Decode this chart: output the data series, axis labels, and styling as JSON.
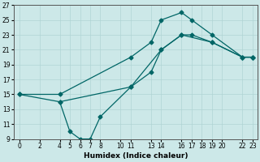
{
  "xlabel": "Humidex (Indice chaleur)",
  "bg_color": "#cce8e8",
  "line_color": "#006666",
  "xlim": [
    -0.5,
    23.5
  ],
  "ylim": [
    9,
    27
  ],
  "xticks": [
    0,
    2,
    4,
    5,
    6,
    7,
    8,
    10,
    11,
    13,
    14,
    16,
    17,
    18,
    19,
    20,
    22,
    23
  ],
  "yticks": [
    9,
    11,
    13,
    15,
    17,
    19,
    21,
    23,
    25,
    27
  ],
  "line1_x": [
    0,
    4,
    11,
    13,
    14,
    16,
    17,
    19,
    22,
    23
  ],
  "line1_y": [
    15,
    15,
    20,
    22,
    25,
    26,
    25,
    23,
    20,
    20
  ],
  "line2_x": [
    0,
    4,
    11,
    13,
    14,
    16,
    17,
    19,
    22,
    23
  ],
  "line2_y": [
    15,
    14,
    16,
    18,
    21,
    23,
    23,
    22,
    20,
    20
  ],
  "line3_x": [
    4,
    5,
    6,
    7,
    8,
    11,
    14,
    16,
    19,
    22,
    23
  ],
  "line3_y": [
    14,
    10,
    9,
    9,
    12,
    16,
    21,
    23,
    22,
    20,
    20
  ]
}
